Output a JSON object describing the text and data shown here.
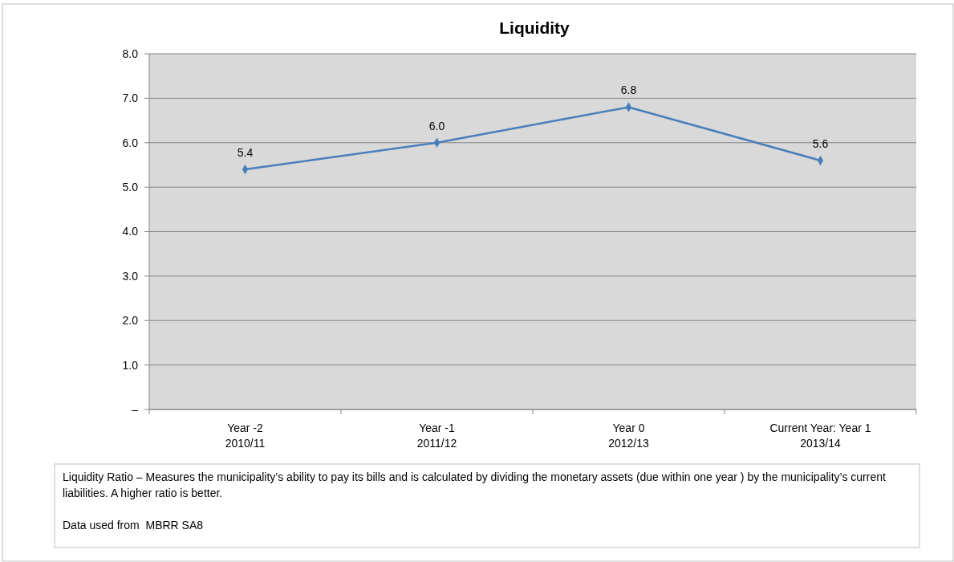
{
  "chart_data": {
    "type": "line",
    "title": "Liquidity",
    "categories": [
      "Year -2\n2010/11",
      "Year -1\n2011/12",
      "Year 0\n2012/13",
      "Current Year: Year 1\n2013/14"
    ],
    "series": [
      {
        "color": "#4a7ebb",
        "values": [
          5.4,
          6.0,
          6.8,
          5.6
        ]
      }
    ],
    "ylim": [
      0,
      8
    ],
    "yticks": [
      {
        "value": 0,
        "label": "–"
      },
      {
        "value": 1,
        "label": "1.0"
      },
      {
        "value": 2,
        "label": "2.0"
      },
      {
        "value": 3,
        "label": "3.0"
      },
      {
        "value": 4,
        "label": "4.0"
      },
      {
        "value": 5,
        "label": "5.0"
      },
      {
        "value": 6,
        "label": "6.0"
      },
      {
        "value": 7,
        "label": "7.0"
      },
      {
        "value": 8,
        "label": "8.0"
      }
    ],
    "grid": "y",
    "marker": "diamond",
    "line_style": "solid",
    "value_labels": [
      "5.4",
      "6.0",
      "6.8",
      "5.6"
    ],
    "annotations": [
      "Liquidity Ratio – Measures the municipality’s ability to pay its bills and is calculated by dividing the monetary assets (due within one year ) by the municipality’s current liabilities. A higher ratio is better.",
      "Data used from  MBRR SA8"
    ]
  }
}
